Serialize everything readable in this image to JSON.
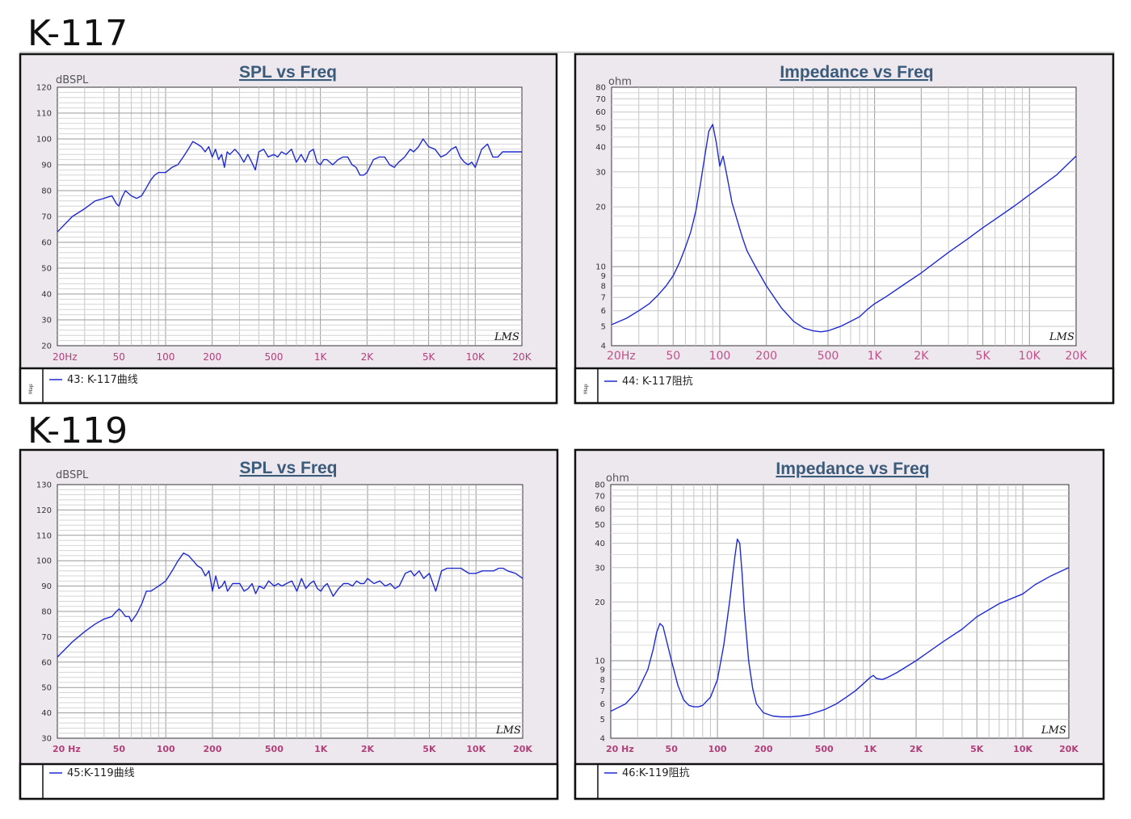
{
  "sections": [
    {
      "title": "K-117"
    },
    {
      "title": "K-119"
    }
  ],
  "map_label": "Map",
  "watermark": "LMS",
  "chart_data": [
    {
      "type": "line",
      "title": "SPL vs Freq",
      "ylabel": "dBSPL",
      "xscale": "log",
      "xlim": [
        20,
        20000
      ],
      "ylim": [
        20,
        120
      ],
      "yticks": [
        20,
        30,
        40,
        50,
        60,
        70,
        80,
        90,
        100,
        110,
        120
      ],
      "xticklabels": [
        "20Hz",
        "50",
        "100",
        "200",
        "500",
        "1K",
        "2K",
        "5K",
        "10K",
        "20K"
      ],
      "legend": "43:  K-117曲线",
      "series": [
        {
          "name": "43:  K-117曲线",
          "x": [
            20,
            25,
            30,
            35,
            40,
            45,
            48,
            50,
            52,
            55,
            60,
            65,
            70,
            75,
            80,
            85,
            90,
            100,
            110,
            120,
            130,
            140,
            150,
            160,
            170,
            180,
            190,
            200,
            210,
            220,
            230,
            240,
            250,
            260,
            280,
            300,
            320,
            340,
            360,
            380,
            400,
            430,
            460,
            500,
            530,
            560,
            600,
            650,
            700,
            750,
            800,
            850,
            900,
            950,
            1000,
            1050,
            1100,
            1200,
            1300,
            1400,
            1500,
            1600,
            1700,
            1800,
            1900,
            2000,
            2200,
            2400,
            2600,
            2800,
            3000,
            3200,
            3500,
            3800,
            4000,
            4300,
            4600,
            5000,
            5500,
            6000,
            6500,
            7000,
            7500,
            8000,
            8500,
            9000,
            9500,
            10000,
            11000,
            12000,
            13000,
            14000,
            15000,
            16000,
            18000,
            20000
          ],
          "y": [
            64,
            70,
            73,
            76,
            77,
            78,
            75,
            74,
            77,
            80,
            78,
            77,
            78,
            81,
            84,
            86,
            87,
            87,
            89,
            90,
            93,
            96,
            99,
            98,
            97,
            95,
            97,
            93,
            96,
            92,
            94,
            89,
            95,
            94,
            96,
            94,
            91,
            94,
            91,
            88,
            95,
            96,
            93,
            94,
            93,
            95,
            94,
            96,
            91,
            94,
            91,
            95,
            96,
            91,
            90,
            92,
            92,
            90,
            92,
            93,
            93,
            90,
            89,
            86,
            86,
            87,
            92,
            93,
            93,
            90,
            89,
            91,
            93,
            96,
            95,
            97,
            100,
            97,
            96,
            93,
            94,
            96,
            97,
            93,
            91,
            90,
            91,
            89,
            96,
            98,
            93,
            93,
            95,
            95,
            95,
            95
          ]
        }
      ]
    },
    {
      "type": "line",
      "title": "Impedance vs Freq",
      "ylabel": "ohm",
      "xscale": "log",
      "yscale": "log",
      "xlim": [
        20,
        20000
      ],
      "ylim": [
        4,
        80
      ],
      "yticks": [
        4,
        5,
        6,
        7,
        8,
        9,
        10,
        20,
        30,
        40,
        50,
        60,
        70,
        80
      ],
      "xticklabels": [
        "20Hz",
        "50",
        "100",
        "200",
        "500",
        "1K",
        "2K",
        "5K",
        "10K",
        "20K"
      ],
      "legend": "44:  K-117阻抗",
      "series": [
        {
          "name": "44:  K-117阻抗",
          "x": [
            20,
            25,
            30,
            35,
            40,
            45,
            48,
            50,
            55,
            60,
            65,
            70,
            75,
            80,
            85,
            90,
            95,
            100,
            105,
            110,
            115,
            120,
            130,
            140,
            150,
            170,
            200,
            250,
            300,
            350,
            400,
            450,
            500,
            600,
            700,
            800,
            900,
            1000,
            1200,
            1500,
            2000,
            3000,
            4000,
            5000,
            6000,
            8000,
            10000,
            12000,
            15000,
            20000
          ],
          "y": [
            5.1,
            5.5,
            6.0,
            6.5,
            7.2,
            8.0,
            8.6,
            9.0,
            10.5,
            12.5,
            15,
            19,
            26,
            36,
            48,
            52,
            42,
            32,
            36,
            30,
            25,
            21,
            17,
            14,
            12,
            10,
            8.0,
            6.2,
            5.3,
            4.9,
            4.75,
            4.7,
            4.75,
            5.0,
            5.3,
            5.6,
            6.1,
            6.5,
            7.1,
            8.0,
            9.3,
            11.8,
            13.8,
            15.7,
            17.3,
            20.2,
            23,
            25.5,
            29,
            36
          ]
        }
      ]
    },
    {
      "type": "line",
      "title": "SPL vs Freq",
      "ylabel": "dBSPL",
      "xscale": "log",
      "xlim": [
        20,
        20000
      ],
      "ylim": [
        30,
        130
      ],
      "yticks": [
        30,
        40,
        50,
        60,
        70,
        80,
        90,
        100,
        110,
        120,
        130
      ],
      "xticklabels": [
        "20 Hz",
        "50",
        "100",
        "200",
        "500",
        "1K",
        "2K",
        "5K",
        "10K",
        "20K"
      ],
      "legend": "45:K-119曲线",
      "series": [
        {
          "name": "45:K-119曲线",
          "x": [
            20,
            25,
            30,
            35,
            40,
            45,
            48,
            50,
            52,
            55,
            58,
            60,
            65,
            70,
            75,
            80,
            85,
            90,
            100,
            110,
            120,
            130,
            140,
            150,
            160,
            170,
            180,
            190,
            200,
            210,
            220,
            230,
            240,
            250,
            270,
            300,
            320,
            340,
            360,
            380,
            400,
            430,
            460,
            500,
            530,
            560,
            600,
            650,
            700,
            750,
            800,
            850,
            900,
            950,
            1000,
            1050,
            1100,
            1200,
            1300,
            1400,
            1500,
            1600,
            1700,
            1800,
            1900,
            2000,
            2200,
            2400,
            2600,
            2800,
            3000,
            3200,
            3500,
            3800,
            4000,
            4300,
            4600,
            5000,
            5500,
            6000,
            6500,
            7000,
            7500,
            8000,
            9000,
            10000,
            11000,
            12000,
            13000,
            14000,
            15000,
            16000,
            18000,
            20000
          ],
          "y": [
            62,
            68,
            72,
            75,
            77,
            78,
            80,
            81,
            80,
            78,
            78,
            76,
            79,
            83,
            88,
            88,
            89,
            90,
            92,
            96,
            100,
            103,
            102,
            100,
            98,
            97,
            94,
            96,
            88,
            94,
            89,
            90,
            92,
            88,
            91,
            91,
            88,
            89,
            91,
            87,
            90,
            89,
            92,
            90,
            91,
            90,
            91,
            92,
            88,
            93,
            89,
            91,
            92,
            89,
            88,
            90,
            91,
            86,
            89,
            91,
            91,
            90,
            92,
            91,
            91,
            93,
            91,
            92,
            90,
            91,
            89,
            90,
            95,
            96,
            94,
            96,
            93,
            95,
            88,
            96,
            97,
            97,
            97,
            97,
            95,
            95,
            96,
            96,
            96,
            97,
            97,
            96,
            95,
            93
          ]
        }
      ]
    },
    {
      "type": "line",
      "title": "Impedance vs Freq",
      "ylabel": "ohm",
      "xscale": "log",
      "yscale": "log",
      "xlim": [
        20,
        20000
      ],
      "ylim": [
        4,
        80
      ],
      "yticks": [
        4,
        5,
        6,
        7,
        8,
        9,
        10,
        20,
        30,
        40,
        50,
        60,
        70,
        80
      ],
      "xticklabels": [
        "20 Hz",
        "50",
        "100",
        "200",
        "500",
        "1K",
        "2K",
        "5K",
        "10K",
        "20K"
      ],
      "legend": "46:K-119阻抗",
      "series": [
        {
          "name": "46:K-119阻抗",
          "x": [
            20,
            25,
            30,
            35,
            38,
            40,
            42,
            44,
            46,
            50,
            55,
            60,
            65,
            70,
            75,
            80,
            90,
            100,
            110,
            120,
            130,
            135,
            140,
            145,
            150,
            160,
            170,
            180,
            200,
            230,
            260,
            300,
            350,
            400,
            500,
            600,
            700,
            800,
            900,
            1000,
            1050,
            1100,
            1200,
            1300,
            1500,
            2000,
            3000,
            4000,
            5000,
            7000,
            10000,
            12000,
            15000,
            20000
          ],
          "y": [
            5.5,
            6.0,
            7.0,
            9.0,
            11.5,
            14,
            15.5,
            15,
            13,
            10,
            7.5,
            6.3,
            5.9,
            5.8,
            5.8,
            5.9,
            6.5,
            8.0,
            12,
            20,
            34,
            42,
            40,
            28,
            18,
            10,
            7.2,
            6.0,
            5.4,
            5.2,
            5.15,
            5.15,
            5.2,
            5.3,
            5.6,
            6.0,
            6.5,
            7.0,
            7.6,
            8.2,
            8.4,
            8.1,
            8.0,
            8.2,
            8.7,
            10,
            12.5,
            14.5,
            16.8,
            19.6,
            22,
            24.5,
            27,
            30
          ]
        }
      ]
    }
  ]
}
